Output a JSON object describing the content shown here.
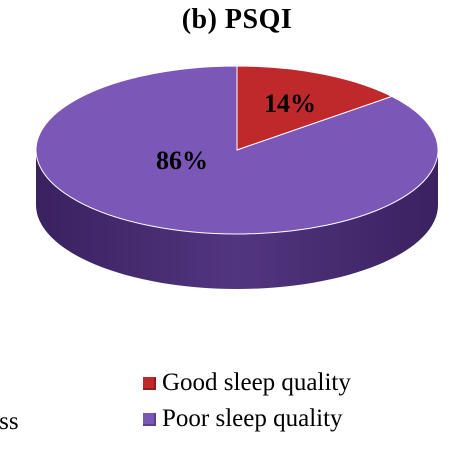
{
  "chart_data": {
    "type": "pie",
    "title": "(b) PSQI",
    "categories": [
      "Good sleep quality",
      "Poor sleep quality"
    ],
    "values": [
      14,
      86
    ],
    "data_labels": [
      "14%",
      "86%"
    ],
    "colors": [
      "#C0292B",
      "#7B57B8"
    ],
    "legend_position": "bottom",
    "style": "3d"
  },
  "fragment_text": "ess"
}
